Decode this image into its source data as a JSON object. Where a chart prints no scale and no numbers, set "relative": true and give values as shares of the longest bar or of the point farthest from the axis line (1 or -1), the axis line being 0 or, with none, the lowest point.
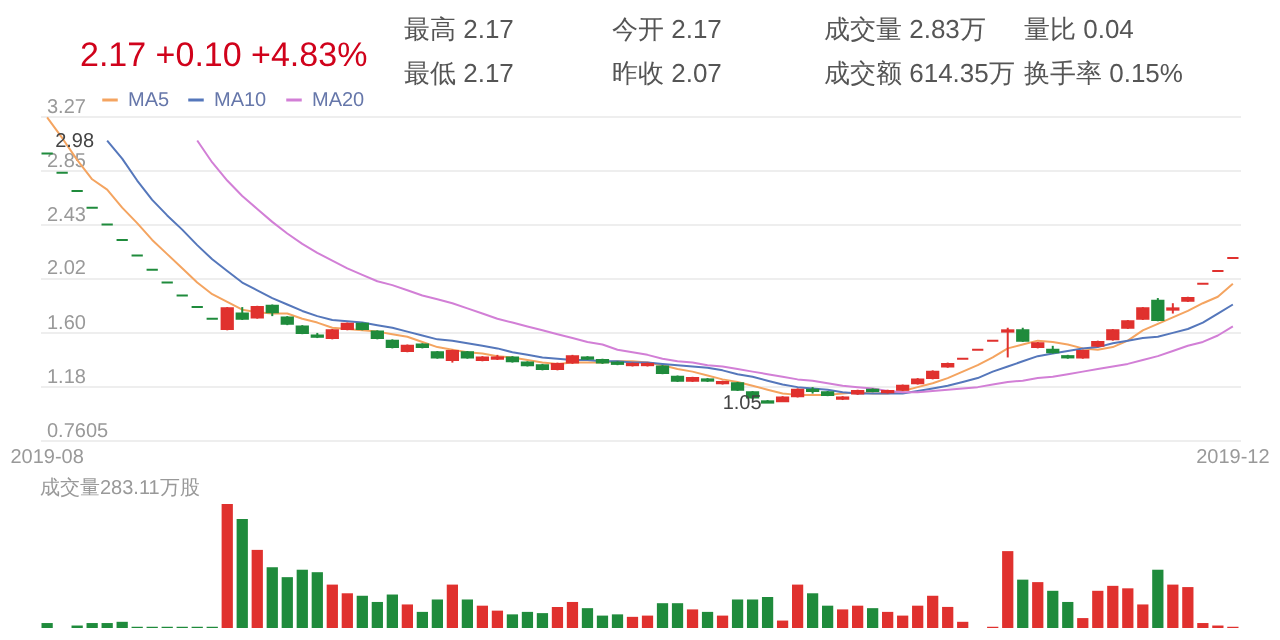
{
  "chart_data": [
    {
      "type": "candlestick",
      "subtitle": "2.17 +0.10 +4.83%",
      "annotations": [
        "最高 2.17",
        "今开 2.17",
        "成交量 2.83万",
        "量比 0.04",
        "最低 2.17",
        "昨收 2.07",
        "成交额 614.35万",
        "换手率 0.15%",
        {
          "text": "2.98",
          "y": 2.98
        },
        {
          "text": "1.05",
          "y": 1.05
        }
      ],
      "categories": [
        "2019-08",
        null,
        null,
        null,
        null,
        null,
        null,
        null,
        null,
        null,
        null,
        null,
        null,
        null,
        null,
        null,
        null,
        null,
        null,
        null,
        null,
        null,
        null,
        null,
        null,
        null,
        null,
        null,
        null,
        null,
        null,
        null,
        null,
        null,
        null,
        null,
        null,
        null,
        null,
        null,
        null,
        null,
        null,
        null,
        null,
        null,
        null,
        null,
        null,
        null,
        null,
        null,
        null,
        null,
        null,
        null,
        null,
        null,
        null,
        null,
        null,
        null,
        null,
        null,
        null,
        null,
        null,
        null,
        null,
        null,
        null,
        null,
        null,
        null,
        null,
        null,
        null,
        null,
        null,
        "2019-12"
      ],
      "ohlc": [
        [
          2.98,
          2.98,
          2.98,
          2.98
        ],
        [
          2.83,
          2.83,
          2.83,
          2.83
        ],
        [
          2.69,
          2.69,
          2.69,
          2.69
        ],
        [
          2.56,
          2.56,
          2.56,
          2.56
        ],
        [
          2.43,
          2.43,
          2.43,
          2.43
        ],
        [
          2.31,
          2.31,
          2.31,
          2.31
        ],
        [
          2.19,
          2.19,
          2.19,
          2.19
        ],
        [
          2.08,
          2.08,
          2.08,
          2.08
        ],
        [
          1.98,
          1.98,
          1.98,
          1.98
        ],
        [
          1.88,
          1.88,
          1.88,
          1.88
        ],
        [
          1.79,
          1.79,
          1.79,
          1.79
        ],
        [
          1.7,
          1.7,
          1.7,
          1.7
        ],
        [
          1.62,
          1.79,
          1.61,
          1.78
        ],
        [
          1.74,
          1.79,
          1.69,
          1.7
        ],
        [
          1.71,
          1.8,
          1.7,
          1.79
        ],
        [
          1.8,
          1.81,
          1.72,
          1.75
        ],
        [
          1.71,
          1.72,
          1.65,
          1.66
        ],
        [
          1.64,
          1.65,
          1.58,
          1.59
        ],
        [
          1.57,
          1.59,
          1.55,
          1.56
        ],
        [
          1.55,
          1.62,
          1.54,
          1.61
        ],
        [
          1.62,
          1.67,
          1.61,
          1.66
        ],
        [
          1.66,
          1.67,
          1.61,
          1.62
        ],
        [
          1.6,
          1.61,
          1.54,
          1.55
        ],
        [
          1.53,
          1.54,
          1.47,
          1.48
        ],
        [
          1.45,
          1.5,
          1.44,
          1.49
        ],
        [
          1.5,
          1.51,
          1.47,
          1.48
        ],
        [
          1.44,
          1.45,
          1.39,
          1.4
        ],
        [
          1.38,
          1.46,
          1.36,
          1.45
        ],
        [
          1.44,
          1.45,
          1.39,
          1.4
        ],
        [
          1.38,
          1.41,
          1.37,
          1.4
        ],
        [
          1.39,
          1.42,
          1.38,
          1.4
        ],
        [
          1.4,
          1.41,
          1.36,
          1.37
        ],
        [
          1.36,
          1.37,
          1.33,
          1.34
        ],
        [
          1.34,
          1.35,
          1.3,
          1.31
        ],
        [
          1.31,
          1.36,
          1.3,
          1.35
        ],
        [
          1.36,
          1.42,
          1.35,
          1.41
        ],
        [
          1.4,
          1.41,
          1.38,
          1.39
        ],
        [
          1.38,
          1.39,
          1.35,
          1.36
        ],
        [
          1.36,
          1.37,
          1.34,
          1.35
        ],
        [
          1.34,
          1.36,
          1.33,
          1.35
        ],
        [
          1.34,
          1.36,
          1.33,
          1.35
        ],
        [
          1.33,
          1.34,
          1.27,
          1.28
        ],
        [
          1.25,
          1.26,
          1.21,
          1.22
        ],
        [
          1.22,
          1.25,
          1.21,
          1.24
        ],
        [
          1.23,
          1.24,
          1.21,
          1.22
        ],
        [
          1.2,
          1.22,
          1.19,
          1.21
        ],
        [
          1.2,
          1.21,
          1.14,
          1.15
        ],
        [
          1.13,
          1.14,
          1.08,
          1.09
        ],
        [
          1.06,
          1.07,
          1.05,
          1.05
        ],
        [
          1.06,
          1.1,
          1.06,
          1.09
        ],
        [
          1.1,
          1.16,
          1.09,
          1.15
        ],
        [
          1.15,
          1.17,
          1.12,
          1.14
        ],
        [
          1.13,
          1.14,
          1.1,
          1.11
        ],
        [
          1.08,
          1.1,
          1.07,
          1.09
        ],
        [
          1.12,
          1.15,
          1.11,
          1.14
        ],
        [
          1.15,
          1.16,
          1.13,
          1.14
        ],
        [
          1.13,
          1.15,
          1.12,
          1.14
        ],
        [
          1.15,
          1.19,
          1.14,
          1.18
        ],
        [
          1.2,
          1.24,
          1.19,
          1.23
        ],
        [
          1.24,
          1.3,
          1.23,
          1.29
        ],
        [
          1.33,
          1.36,
          1.32,
          1.35
        ],
        [
          1.39,
          1.39,
          1.39,
          1.39
        ],
        [
          1.46,
          1.46,
          1.46,
          1.46
        ],
        [
          1.53,
          1.53,
          1.53,
          1.53
        ],
        [
          1.6,
          1.63,
          1.4,
          1.61
        ],
        [
          1.61,
          1.63,
          1.52,
          1.53
        ],
        [
          1.48,
          1.52,
          1.47,
          1.51
        ],
        [
          1.46,
          1.49,
          1.43,
          1.44
        ],
        [
          1.41,
          1.42,
          1.39,
          1.4
        ],
        [
          1.4,
          1.46,
          1.39,
          1.45
        ],
        [
          1.49,
          1.53,
          1.48,
          1.52
        ],
        [
          1.54,
          1.62,
          1.53,
          1.61
        ],
        [
          1.63,
          1.69,
          1.62,
          1.68
        ],
        [
          1.7,
          1.79,
          1.69,
          1.78
        ],
        [
          1.84,
          1.86,
          1.68,
          1.69
        ],
        [
          1.77,
          1.82,
          1.74,
          1.78
        ],
        [
          1.84,
          1.87,
          1.83,
          1.86
        ],
        [
          1.97,
          1.97,
          1.97,
          1.97
        ],
        [
          2.07,
          2.07,
          2.07,
          2.07
        ],
        [
          2.17,
          2.17,
          2.17,
          2.17
        ]
      ],
      "colors": [
        "#1f8b3c",
        "#1f8b3c",
        "#1f8b3c",
        "#1f8b3c",
        "#1f8b3c",
        "#1f8b3c",
        "#1f8b3c",
        "#1f8b3c",
        "#1f8b3c",
        "#1f8b3c",
        "#1f8b3c",
        "#1f8b3c",
        "#e0312e",
        "#1f8b3c",
        "#e0312e",
        "#1f8b3c",
        "#1f8b3c",
        "#1f8b3c",
        "#1f8b3c",
        "#e0312e",
        "#e0312e",
        "#1f8b3c",
        "#1f8b3c",
        "#1f8b3c",
        "#e0312e",
        "#1f8b3c",
        "#1f8b3c",
        "#e0312e",
        "#1f8b3c",
        "#e0312e",
        "#e0312e",
        "#1f8b3c",
        "#1f8b3c",
        "#1f8b3c",
        "#e0312e",
        "#e0312e",
        "#1f8b3c",
        "#1f8b3c",
        "#1f8b3c",
        "#e0312e",
        "#e0312e",
        "#1f8b3c",
        "#1f8b3c",
        "#e0312e",
        "#1f8b3c",
        "#e0312e",
        "#1f8b3c",
        "#1f8b3c",
        "#1f8b3c",
        "#e0312e",
        "#e0312e",
        "#1f8b3c",
        "#1f8b3c",
        "#e0312e",
        "#e0312e",
        "#1f8b3c",
        "#e0312e",
        "#e0312e",
        "#e0312e",
        "#e0312e",
        "#e0312e",
        "#e0312e",
        "#e0312e",
        "#e0312e",
        "#e0312e",
        "#1f8b3c",
        "#e0312e",
        "#1f8b3c",
        "#1f8b3c",
        "#e0312e",
        "#e0312e",
        "#e0312e",
        "#e0312e",
        "#e0312e",
        "#1f8b3c",
        "#e0312e",
        "#e0312e",
        "#e0312e",
        "#e0312e",
        "#e0312e"
      ],
      "ylim": [
        0.7605,
        3.27
      ],
      "yticks": [
        {
          "value": 0.7605,
          "label": "0.7605"
        },
        {
          "value": 1.18,
          "label": "1.18"
        },
        {
          "value": 1.6,
          "label": "1.60"
        },
        {
          "value": 2.02,
          "label": "2.02"
        },
        {
          "value": 2.43,
          "label": "2.43"
        },
        {
          "value": 2.85,
          "label": "2.85"
        },
        {
          "value": 3.27,
          "label": "3.27"
        }
      ],
      "grid": "y",
      "legend": "top left",
      "series": [
        {
          "name": "MA5",
          "type": "line",
          "color": "#f4a460",
          "values": [
            3.26,
            3.1,
            2.93,
            2.78,
            2.7,
            2.56,
            2.44,
            2.31,
            2.2,
            2.09,
            1.98,
            1.89,
            1.83,
            1.77,
            1.75,
            1.74,
            1.74,
            1.7,
            1.67,
            1.63,
            1.62,
            1.61,
            1.6,
            1.58,
            1.56,
            1.52,
            1.48,
            1.46,
            1.44,
            1.43,
            1.41,
            1.4,
            1.38,
            1.36,
            1.35,
            1.36,
            1.36,
            1.36,
            1.37,
            1.37,
            1.36,
            1.34,
            1.31,
            1.29,
            1.26,
            1.23,
            1.21,
            1.18,
            1.15,
            1.12,
            1.11,
            1.11,
            1.11,
            1.12,
            1.13,
            1.12,
            1.12,
            1.14,
            1.17,
            1.2,
            1.24,
            1.29,
            1.34,
            1.4,
            1.47,
            1.5,
            1.53,
            1.52,
            1.5,
            1.47,
            1.46,
            1.48,
            1.53,
            1.61,
            1.66,
            1.71,
            1.76,
            1.82,
            1.87,
            1.97
          ]
        },
        {
          "name": "MA10",
          "type": "line",
          "color": "#5577bb",
          "values": [
            null,
            null,
            null,
            null,
            3.08,
            2.94,
            2.77,
            2.62,
            2.5,
            2.39,
            2.27,
            2.16,
            2.07,
            1.98,
            1.92,
            1.86,
            1.81,
            1.76,
            1.72,
            1.69,
            1.68,
            1.67,
            1.65,
            1.63,
            1.6,
            1.57,
            1.54,
            1.53,
            1.51,
            1.49,
            1.47,
            1.44,
            1.42,
            1.4,
            1.39,
            1.38,
            1.38,
            1.37,
            1.37,
            1.36,
            1.36,
            1.35,
            1.34,
            1.33,
            1.32,
            1.3,
            1.27,
            1.25,
            1.22,
            1.19,
            1.17,
            1.16,
            1.15,
            1.13,
            1.12,
            1.12,
            1.12,
            1.12,
            1.14,
            1.16,
            1.18,
            1.21,
            1.24,
            1.29,
            1.33,
            1.37,
            1.41,
            1.43,
            1.45,
            1.47,
            1.48,
            1.51,
            1.53,
            1.55,
            1.56,
            1.59,
            1.62,
            1.67,
            1.74,
            1.81
          ]
        },
        {
          "name": "MA20",
          "type": "line",
          "color": "#d27fd6",
          "values": [
            null,
            null,
            null,
            null,
            null,
            null,
            null,
            null,
            null,
            null,
            3.08,
            2.91,
            2.77,
            2.65,
            2.55,
            2.45,
            2.36,
            2.28,
            2.21,
            2.15,
            2.09,
            2.04,
            1.99,
            1.96,
            1.92,
            1.88,
            1.85,
            1.82,
            1.78,
            1.74,
            1.7,
            1.67,
            1.64,
            1.61,
            1.58,
            1.55,
            1.52,
            1.5,
            1.46,
            1.44,
            1.42,
            1.39,
            1.37,
            1.36,
            1.34,
            1.33,
            1.31,
            1.29,
            1.27,
            1.25,
            1.23,
            1.22,
            1.2,
            1.18,
            1.17,
            1.16,
            1.14,
            1.13,
            1.13,
            1.14,
            1.15,
            1.16,
            1.17,
            1.19,
            1.21,
            1.22,
            1.24,
            1.25,
            1.27,
            1.29,
            1.31,
            1.33,
            1.35,
            1.38,
            1.41,
            1.45,
            1.49,
            1.52,
            1.57,
            1.64
          ]
        }
      ]
    },
    {
      "type": "bar",
      "title": "成交量283.11万股",
      "relative": true,
      "categories": [
        null,
        null,
        null,
        null,
        null,
        null,
        null,
        null,
        null,
        null,
        null,
        null,
        null,
        null,
        null,
        null,
        null,
        null,
        null,
        null,
        null,
        null,
        null,
        null,
        null,
        null,
        null,
        null,
        null,
        null,
        null,
        null,
        null,
        null,
        null,
        null,
        null,
        null,
        null,
        null,
        null,
        null,
        null,
        null,
        null,
        null,
        null,
        null,
        null,
        null,
        null,
        null,
        null,
        null,
        null,
        null,
        null,
        null,
        null,
        null,
        null,
        null,
        null,
        null,
        null,
        null,
        null,
        null,
        null,
        null,
        null,
        null,
        null,
        null,
        null,
        null,
        null,
        null,
        null,
        null
      ],
      "values": [
        0.04,
        0,
        0.02,
        0.04,
        0.04,
        0.05,
        0.01,
        0.01,
        0.01,
        0.01,
        0.01,
        0.01,
        1,
        0.88,
        0.63,
        0.49,
        0.41,
        0.47,
        0.45,
        0.35,
        0.28,
        0.26,
        0.21,
        0.27,
        0.19,
        0.13,
        0.23,
        0.35,
        0.23,
        0.18,
        0.14,
        0.11,
        0.13,
        0.12,
        0.17,
        0.21,
        0.16,
        0.1,
        0.11,
        0.09,
        0.1,
        0.2,
        0.2,
        0.15,
        0.13,
        0.1,
        0.23,
        0.23,
        0.25,
        0.06,
        0.35,
        0.28,
        0.18,
        0.15,
        0.18,
        0.16,
        0.13,
        0.1,
        0.18,
        0.26,
        0.17,
        0.05,
        0,
        0.01,
        0.62,
        0.39,
        0.37,
        0.3,
        0.21,
        0.08,
        0.3,
        0.34,
        0.32,
        0.19,
        0.47,
        0.35,
        0.33,
        0.04,
        0.02,
        0.01
      ],
      "colors": [
        "#1f8b3c",
        "#1f8b3c",
        "#1f8b3c",
        "#1f8b3c",
        "#1f8b3c",
        "#1f8b3c",
        "#1f8b3c",
        "#1f8b3c",
        "#1f8b3c",
        "#1f8b3c",
        "#1f8b3c",
        "#1f8b3c",
        "#e0312e",
        "#1f8b3c",
        "#e0312e",
        "#1f8b3c",
        "#1f8b3c",
        "#1f8b3c",
        "#1f8b3c",
        "#e0312e",
        "#e0312e",
        "#1f8b3c",
        "#1f8b3c",
        "#1f8b3c",
        "#e0312e",
        "#1f8b3c",
        "#1f8b3c",
        "#e0312e",
        "#1f8b3c",
        "#e0312e",
        "#e0312e",
        "#1f8b3c",
        "#1f8b3c",
        "#1f8b3c",
        "#e0312e",
        "#e0312e",
        "#1f8b3c",
        "#1f8b3c",
        "#1f8b3c",
        "#e0312e",
        "#e0312e",
        "#1f8b3c",
        "#1f8b3c",
        "#e0312e",
        "#1f8b3c",
        "#e0312e",
        "#1f8b3c",
        "#1f8b3c",
        "#1f8b3c",
        "#e0312e",
        "#e0312e",
        "#1f8b3c",
        "#1f8b3c",
        "#e0312e",
        "#e0312e",
        "#1f8b3c",
        "#e0312e",
        "#e0312e",
        "#e0312e",
        "#e0312e",
        "#e0312e",
        "#e0312e",
        "#e0312e",
        "#e0312e",
        "#e0312e",
        "#1f8b3c",
        "#e0312e",
        "#1f8b3c",
        "#1f8b3c",
        "#e0312e",
        "#e0312e",
        "#e0312e",
        "#e0312e",
        "#e0312e",
        "#1f8b3c",
        "#e0312e",
        "#e0312e",
        "#e0312e",
        "#e0312e",
        "#e0312e"
      ]
    }
  ]
}
